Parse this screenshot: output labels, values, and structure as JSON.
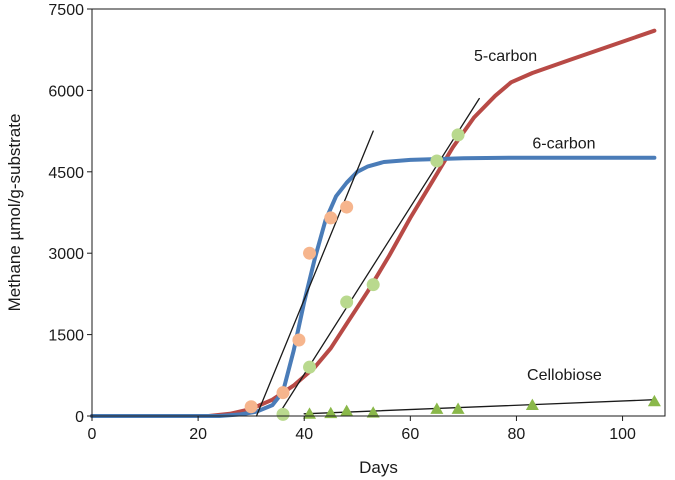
{
  "chart_data": {
    "type": "line",
    "title": "",
    "xlabel": "Days",
    "ylabel": "Methane µmol/g-substrate",
    "xlim": [
      0,
      108
    ],
    "ylim": [
      0,
      7500
    ],
    "xticks": [
      0,
      20,
      40,
      60,
      80,
      100
    ],
    "yticks": [
      0,
      1500,
      3000,
      4500,
      6000,
      7500
    ],
    "grid": false,
    "series": [
      {
        "name": "5-carbon",
        "kind": "line",
        "color": "#b84a46",
        "points": [
          [
            0,
            0
          ],
          [
            22,
            0
          ],
          [
            26,
            40
          ],
          [
            30,
            130
          ],
          [
            34,
            300
          ],
          [
            38,
            560
          ],
          [
            42,
            900
          ],
          [
            45,
            1250
          ],
          [
            48,
            1700
          ],
          [
            52,
            2300
          ],
          [
            56,
            2950
          ],
          [
            60,
            3650
          ],
          [
            64,
            4300
          ],
          [
            68,
            4950
          ],
          [
            72,
            5500
          ],
          [
            76,
            5900
          ],
          [
            79,
            6150
          ],
          [
            83,
            6320
          ],
          [
            90,
            6560
          ],
          [
            98,
            6830
          ],
          [
            106,
            7100
          ]
        ]
      },
      {
        "name": "6-carbon",
        "kind": "line",
        "color": "#4a7cb8",
        "points": [
          [
            0,
            0
          ],
          [
            24,
            0
          ],
          [
            28,
            30
          ],
          [
            31,
            80
          ],
          [
            34,
            200
          ],
          [
            36,
            450
          ],
          [
            38,
            1200
          ],
          [
            40,
            2100
          ],
          [
            42,
            2900
          ],
          [
            44,
            3600
          ],
          [
            46,
            4050
          ],
          [
            48,
            4300
          ],
          [
            50,
            4500
          ],
          [
            52,
            4600
          ],
          [
            55,
            4680
          ],
          [
            60,
            4720
          ],
          [
            70,
            4750
          ],
          [
            80,
            4760
          ],
          [
            106,
            4760
          ]
        ]
      },
      {
        "name": "Cellobiose",
        "kind": "line",
        "color": "#1a1a1a",
        "points": [
          [
            40,
            40
          ],
          [
            106,
            300
          ]
        ]
      },
      {
        "name": "6-carbon data",
        "kind": "scatter",
        "marker": "circle",
        "color": "#f6b58d",
        "points": [
          [
            30,
            170
          ],
          [
            36,
            430
          ],
          [
            39,
            1400
          ],
          [
            41,
            3000
          ],
          [
            45,
            3650
          ],
          [
            48,
            3850
          ]
        ]
      },
      {
        "name": "5-carbon data",
        "kind": "scatter",
        "marker": "circle",
        "color": "#b9d98e",
        "points": [
          [
            36,
            30
          ],
          [
            41,
            900
          ],
          [
            48,
            2100
          ],
          [
            53,
            2420
          ],
          [
            65,
            4700
          ],
          [
            69,
            5180
          ]
        ]
      },
      {
        "name": "Cellobiose data",
        "kind": "scatter",
        "marker": "triangle",
        "color": "#8ab84a",
        "points": [
          [
            41,
            40
          ],
          [
            45,
            50
          ],
          [
            48,
            90
          ],
          [
            53,
            60
          ],
          [
            65,
            130
          ],
          [
            69,
            130
          ],
          [
            83,
            200
          ],
          [
            106,
            270
          ]
        ]
      },
      {
        "name": "6-carbon tangent",
        "kind": "line",
        "color": "#1a1a1a",
        "points": [
          [
            31,
            0
          ],
          [
            53,
            5250
          ]
        ]
      },
      {
        "name": "5-carbon tangent",
        "kind": "line",
        "color": "#1a1a1a",
        "points": [
          [
            35,
            0
          ],
          [
            73,
            5850
          ]
        ]
      }
    ],
    "annotations": [
      {
        "text": "5-carbon",
        "x": 72,
        "y": 6540
      },
      {
        "text": "6-carbon",
        "x": 83,
        "y": 4930
      },
      {
        "text": "Cellobiose",
        "x": 82,
        "y": 660
      }
    ]
  }
}
